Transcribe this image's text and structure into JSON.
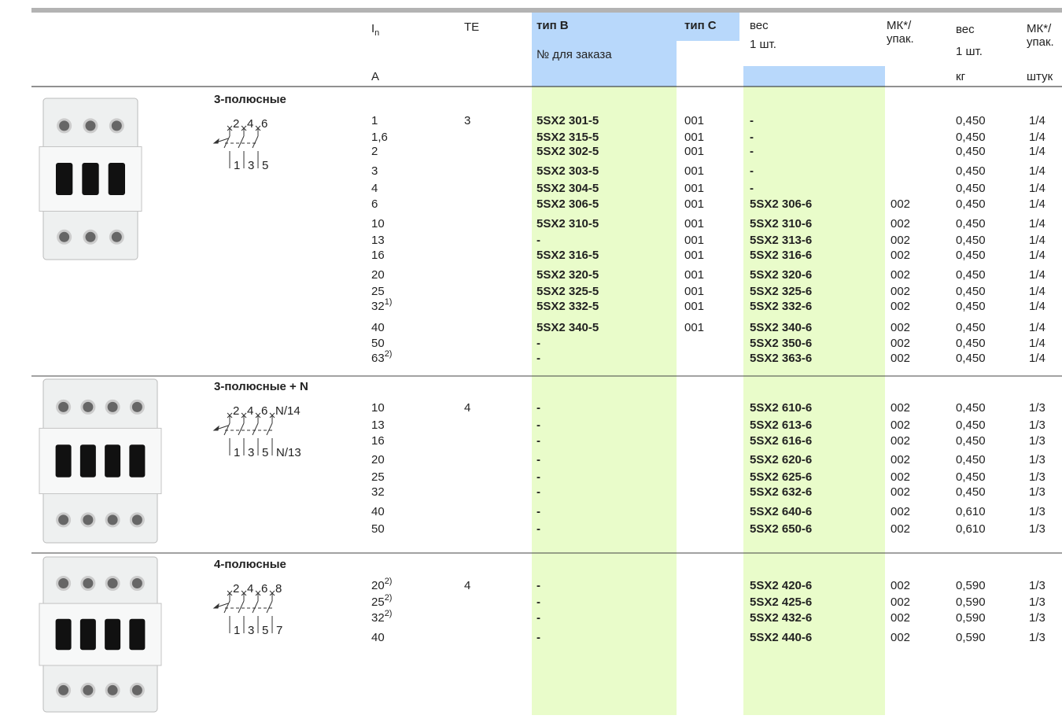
{
  "header": {
    "in": {
      "symbol": "I",
      "sub": "n"
    },
    "te": "TE",
    "type_b": "тип B",
    "order_no": "№ для заказа",
    "type_c": "тип C",
    "weight1": [
      "вес",
      "1 шт."
    ],
    "pack1": [
      "МК*/",
      "упак."
    ],
    "weight2": [
      "вес",
      "1 шт."
    ],
    "pack2": [
      "МК*/",
      "упак."
    ],
    "units": {
      "in": "A",
      "weight": "кг",
      "pack": "штук"
    }
  },
  "sections": [
    {
      "title": "3-полюсные",
      "diagram": {
        "top": [
          "2",
          "4",
          "6"
        ],
        "bottom": [
          "1",
          "3",
          "5"
        ]
      },
      "rows": [
        [
          "1",
          null,
          "3",
          "5SX2 301-5",
          "001",
          "-",
          null,
          "0,450",
          "1/4"
        ],
        [
          "1,6",
          null,
          null,
          "5SX2 315-5",
          "001",
          "-",
          null,
          "0,450",
          "1/4"
        ],
        [
          "2",
          null,
          null,
          "5SX2 302-5",
          "001",
          "-",
          null,
          "0,450",
          "1/4"
        ],
        [
          "3",
          null,
          null,
          "5SX2 303-5",
          "001",
          "-",
          null,
          "0,450",
          "1/4"
        ],
        [
          "4",
          null,
          null,
          "5SX2 304-5",
          "001",
          "-",
          null,
          "0,450",
          "1/4"
        ],
        [
          "6",
          null,
          null,
          "5SX2 306-5",
          "001",
          "5SX2 306-6",
          "002",
          "0,450",
          "1/4"
        ],
        [
          "10",
          null,
          null,
          "5SX2 310-5",
          "001",
          "5SX2 310-6",
          "002",
          "0,450",
          "1/4"
        ],
        [
          "13",
          null,
          null,
          "-",
          "001",
          "5SX2 313-6",
          "002",
          "0,450",
          "1/4"
        ],
        [
          "16",
          null,
          null,
          "5SX2 316-5",
          "001",
          "5SX2 316-6",
          "002",
          "0,450",
          "1/4"
        ],
        [
          "20",
          null,
          null,
          "5SX2 320-5",
          "001",
          "5SX2 320-6",
          "002",
          "0,450",
          "1/4"
        ],
        [
          "25",
          null,
          null,
          "5SX2 325-5",
          "001",
          "5SX2 325-6",
          "002",
          "0,450",
          "1/4"
        ],
        [
          "32",
          "1)",
          null,
          "5SX2 332-5",
          "001",
          "5SX2 332-6",
          "002",
          "0,450",
          "1/4"
        ],
        [
          "40",
          null,
          null,
          "5SX2 340-5",
          "001",
          "5SX2 340-6",
          "002",
          "0,450",
          "1/4"
        ],
        [
          "50",
          null,
          null,
          "-",
          null,
          "5SX2 350-6",
          "002",
          "0,450",
          "1/4"
        ],
        [
          "63",
          "2)",
          null,
          "-",
          null,
          "5SX2 363-6",
          "002",
          "0,450",
          "1/4"
        ]
      ]
    },
    {
      "title": "3-полюсные + N",
      "diagram": {
        "top": [
          "2",
          "4",
          "6",
          "N/14"
        ],
        "bottom": [
          "1",
          "3",
          "5",
          "N/13"
        ]
      },
      "rows": [
        [
          "10",
          null,
          "4",
          "-",
          null,
          "5SX2 610-6",
          "002",
          "0,450",
          "1/3"
        ],
        [
          "13",
          null,
          null,
          "-",
          null,
          "5SX2 613-6",
          "002",
          "0,450",
          "1/3"
        ],
        [
          "16",
          null,
          null,
          "-",
          null,
          "5SX2 616-6",
          "002",
          "0,450",
          "1/3"
        ],
        [
          "20",
          null,
          null,
          "-",
          null,
          "5SX2 620-6",
          "002",
          "0,450",
          "1/3"
        ],
        [
          "25",
          null,
          null,
          "-",
          null,
          "5SX2 625-6",
          "002",
          "0,450",
          "1/3"
        ],
        [
          "32",
          null,
          null,
          "-",
          null,
          "5SX2 632-6",
          "002",
          "0,450",
          "1/3"
        ],
        [
          "40",
          null,
          null,
          "-",
          null,
          "5SX2 640-6",
          "002",
          "0,610",
          "1/3"
        ],
        [
          "50",
          null,
          null,
          "-",
          null,
          "5SX2 650-6",
          "002",
          "0,610",
          "1/3"
        ]
      ]
    },
    {
      "title": "4-полюсные",
      "diagram": {
        "top": [
          "2",
          "4",
          "6",
          "8"
        ],
        "bottom": [
          "1",
          "3",
          "5",
          "7"
        ]
      },
      "rows": [
        [
          "20",
          "2)",
          "4",
          "-",
          null,
          "5SX2 420-6",
          "002",
          "0,590",
          "1/3"
        ],
        [
          "25",
          "2)",
          null,
          "-",
          null,
          "5SX2 425-6",
          "002",
          "0,590",
          "1/3"
        ],
        [
          "32",
          "2)",
          null,
          "-",
          null,
          "5SX2 432-6",
          "002",
          "0,590",
          "1/3"
        ],
        [
          "40",
          null,
          null,
          "-",
          null,
          "5SX2 440-6",
          "002",
          "0,590",
          "1/3"
        ]
      ]
    }
  ]
}
